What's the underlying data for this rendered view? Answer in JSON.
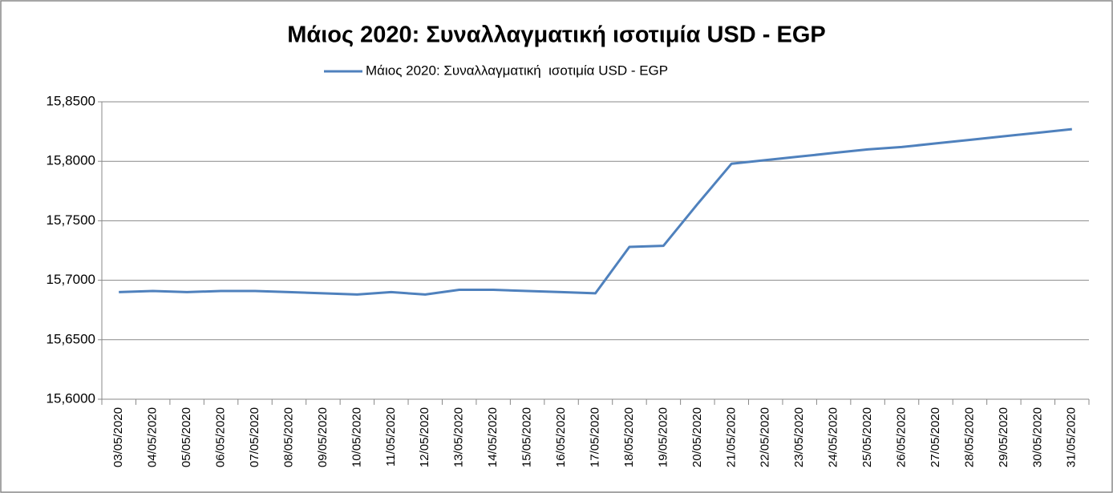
{
  "chart_data": {
    "type": "line",
    "title": "Μάιος 2020: Συναλλαγματική ισοτιμία USD - EGP",
    "categories": [
      "03/05/2020",
      "04/05/2020",
      "05/05/2020",
      "06/05/2020",
      "07/05/2020",
      "08/05/2020",
      "09/05/2020",
      "10/05/2020",
      "11/05/2020",
      "12/05/2020",
      "13/05/2020",
      "14/05/2020",
      "15/05/2020",
      "16/05/2020",
      "17/05/2020",
      "18/05/2020",
      "19/05/2020",
      "20/05/2020",
      "21/05/2020",
      "22/05/2020",
      "23/05/2020",
      "24/05/2020",
      "25/05/2020",
      "26/05/2020",
      "27/05/2020",
      "28/05/2020",
      "29/05/2020",
      "30/05/2020",
      "31/05/2020"
    ],
    "series": [
      {
        "name": "Μάιος 2020: Συναλλαγματική  ισοτιμία USD - EGP",
        "color": "#4f81bd",
        "values": [
          15.69,
          15.691,
          15.69,
          15.691,
          15.691,
          15.69,
          15.689,
          15.688,
          15.69,
          15.688,
          15.692,
          15.692,
          15.691,
          15.69,
          15.689,
          15.728,
          15.729,
          15.764,
          15.798,
          15.801,
          15.804,
          15.807,
          15.81,
          15.812,
          15.815,
          15.818,
          15.821,
          15.824,
          15.827
        ]
      }
    ],
    "ylim": [
      15.6,
      15.85
    ],
    "yticks": [
      {
        "value": 15.6,
        "label": "15,6000"
      },
      {
        "value": 15.65,
        "label": "15,6500"
      },
      {
        "value": 15.7,
        "label": "15,7000"
      },
      {
        "value": 15.75,
        "label": "15,7500"
      },
      {
        "value": 15.8,
        "label": "15,8000"
      },
      {
        "value": 15.85,
        "label": "15,8500"
      }
    ],
    "grid": true,
    "legend": "top"
  }
}
